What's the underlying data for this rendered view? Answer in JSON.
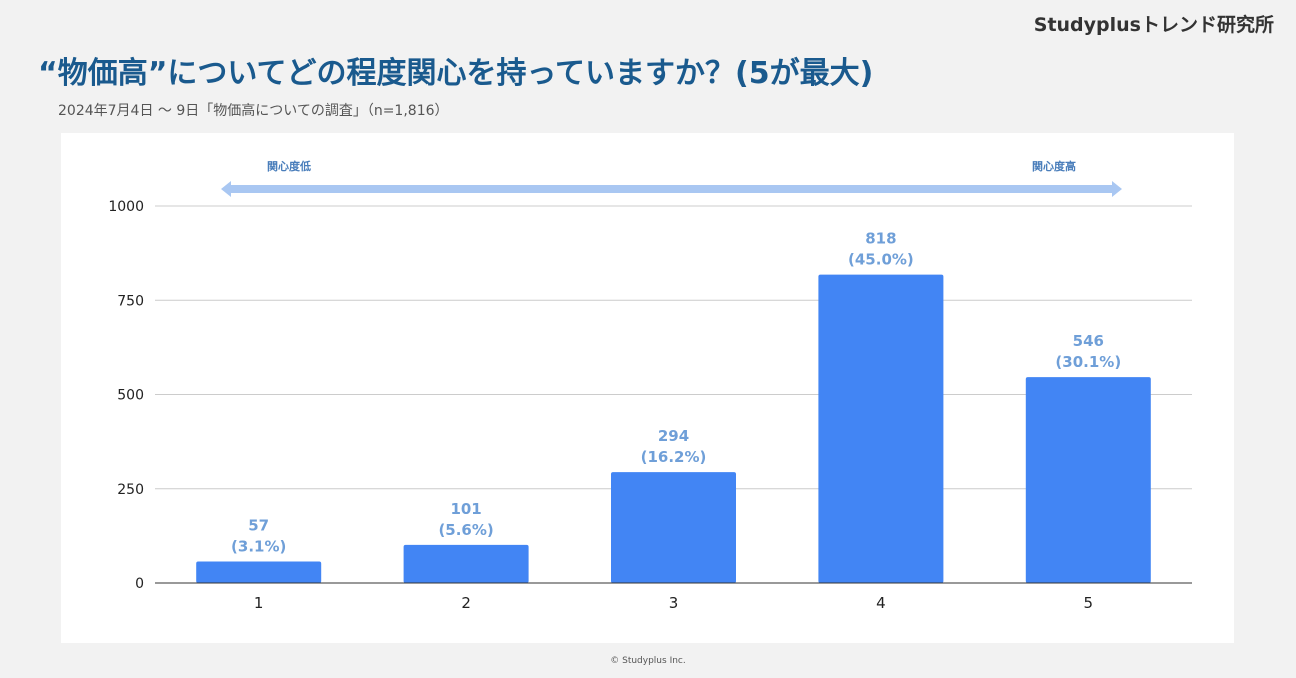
{
  "brand": "Studyplusトレンド研究所",
  "title": "“物価高”についてどの程度関心を持っていますか？(5が最大)",
  "subtitle": "2024年7月4日 〜 9日「物価高についての調査」（n=1,816）",
  "footer": "© Studyplus Inc.",
  "scale": {
    "low_label": "関心度低",
    "high_label": "関心度高",
    "arrow_color": "#a9c7f2"
  },
  "chart_data": {
    "type": "bar",
    "categories": [
      "1",
      "2",
      "3",
      "4",
      "5"
    ],
    "values": [
      57,
      101,
      294,
      818,
      546
    ],
    "percent_labels": [
      "(3.1%)",
      "(5.6%)",
      "(16.2%)",
      "(45.0%)",
      "(30.1%)"
    ],
    "ylim": [
      0,
      1000
    ],
    "yticks": [
      0,
      250,
      500,
      750,
      1000
    ],
    "grid": true,
    "bar_color": "#4285f4",
    "label_color": "#6f9fd8",
    "title": "",
    "xlabel": "",
    "ylabel": ""
  }
}
